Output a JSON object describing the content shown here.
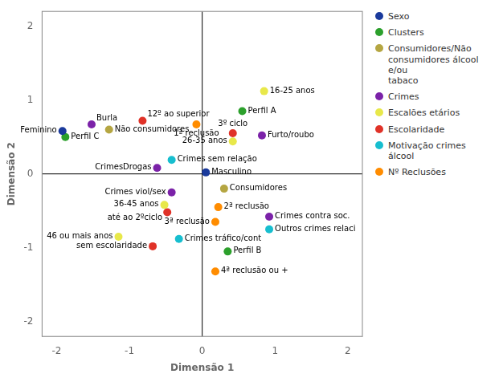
{
  "chart_data": {
    "type": "scatter",
    "xlabel": "Dimensão 1",
    "ylabel": "Dimensão 2",
    "xlim": [
      -2.2,
      2.2
    ],
    "ylim": [
      -2.2,
      2.2
    ],
    "xticks": [
      -2,
      -1,
      0,
      1,
      2
    ],
    "yticks": [
      -2,
      -1,
      0,
      1,
      2
    ],
    "grid": false,
    "legend": "right",
    "series": [
      {
        "name": "Sexo",
        "color": "#1a3a9c",
        "x": [
          -1.92,
          0.05
        ],
        "y": [
          0.58,
          0.02
        ],
        "labels": [
          "Feminino",
          "Masculino"
        ]
      },
      {
        "name": "Clusters",
        "color": "#2ca02c",
        "x": [
          0.55,
          0.35,
          -1.88
        ],
        "y": [
          0.85,
          -1.05,
          0.5
        ],
        "labels": [
          "Perfil A",
          "Perfil B",
          "Perfil C"
        ]
      },
      {
        "name": "Consumidores/Não\nconsumidores álcool e/ou\ntabaco",
        "color": "#b5a642",
        "x": [
          -1.28,
          0.3
        ],
        "y": [
          0.6,
          -0.2
        ],
        "labels": [
          "Não consumidores",
          "Consumidores"
        ]
      },
      {
        "name": "Crimes",
        "color": "#7b22a8",
        "x": [
          -1.52,
          -0.62,
          -0.42,
          0.82,
          0.92
        ],
        "y": [
          0.67,
          0.08,
          -0.25,
          0.52,
          -0.58
        ],
        "labels": [
          "Burla",
          "CrimesDrogas",
          "Crimes viol/sex",
          "Furto/roubo",
          "Crimes contra soc."
        ]
      },
      {
        "name": "Escalões etários",
        "color": "#e8e84a",
        "x": [
          0.85,
          0.42,
          -0.52,
          -1.15
        ],
        "y": [
          1.12,
          0.44,
          -0.42,
          -0.85
        ],
        "labels": [
          "16-25 anos",
          "26-35 anos",
          "36-45 anos",
          "46 ou mais anos"
        ]
      },
      {
        "name": "Escolaridade",
        "color": "#e03228",
        "x": [
          -0.82,
          0.42,
          -0.48,
          -0.68
        ],
        "y": [
          0.72,
          0.55,
          -0.52,
          -0.98
        ],
        "labels": [
          "12º ao superior",
          "3º ciclo",
          "até ao 2ºciclo",
          "sem escolaridade"
        ]
      },
      {
        "name": "Motivação crimes álcool",
        "color": "#17becf",
        "x": [
          -0.42,
          -0.32,
          0.92
        ],
        "y": [
          0.19,
          -0.88,
          -0.75
        ],
        "labels": [
          "Crimes sem relação",
          "Crimes tráfico/cont",
          "Outros crimes relaci"
        ]
      },
      {
        "name": "Nº Reclusões",
        "color": "#ff8c00",
        "x": [
          -0.08,
          0.22,
          0.18,
          0.18
        ],
        "y": [
          0.67,
          -0.45,
          -0.65,
          -1.32
        ],
        "labels": [
          "1ª reclusão",
          "2ª reclusão",
          "3ª reclusão",
          "4ª reclusão ou +"
        ]
      }
    ]
  }
}
